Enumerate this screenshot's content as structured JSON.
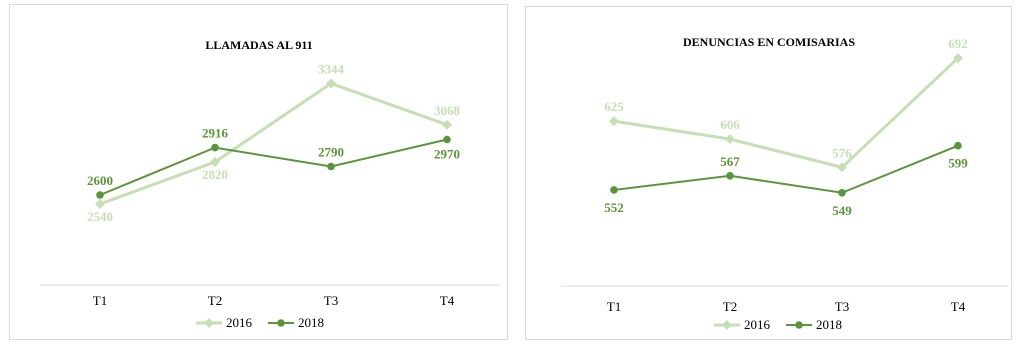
{
  "colors": {
    "series_2016": "#c5dfb4",
    "series_2018": "#5b953a",
    "axis": "#d9d9d9"
  },
  "chart_data": [
    {
      "type": "line",
      "title": "LLAMADAS AL 911",
      "categories": [
        "T1",
        "T2",
        "T3",
        "T4"
      ],
      "series": [
        {
          "name": "2016",
          "values": [
            2540,
            2820,
            3344,
            3068
          ]
        },
        {
          "name": "2018",
          "values": [
            2600,
            2916,
            2790,
            2970
          ]
        }
      ],
      "ylim": [
        2000,
        3600
      ],
      "grid": false,
      "legend": "bottom"
    },
    {
      "type": "line",
      "title": "DENUNCIAS EN COMISARIAS",
      "categories": [
        "T1",
        "T2",
        "T3",
        "T4"
      ],
      "series": [
        {
          "name": "2016",
          "values": [
            625,
            606,
            576,
            692
          ]
        },
        {
          "name": "2018",
          "values": [
            552,
            567,
            549,
            599
          ]
        }
      ],
      "ylim": [
        450,
        725
      ],
      "grid": false,
      "legend": "bottom"
    }
  ]
}
